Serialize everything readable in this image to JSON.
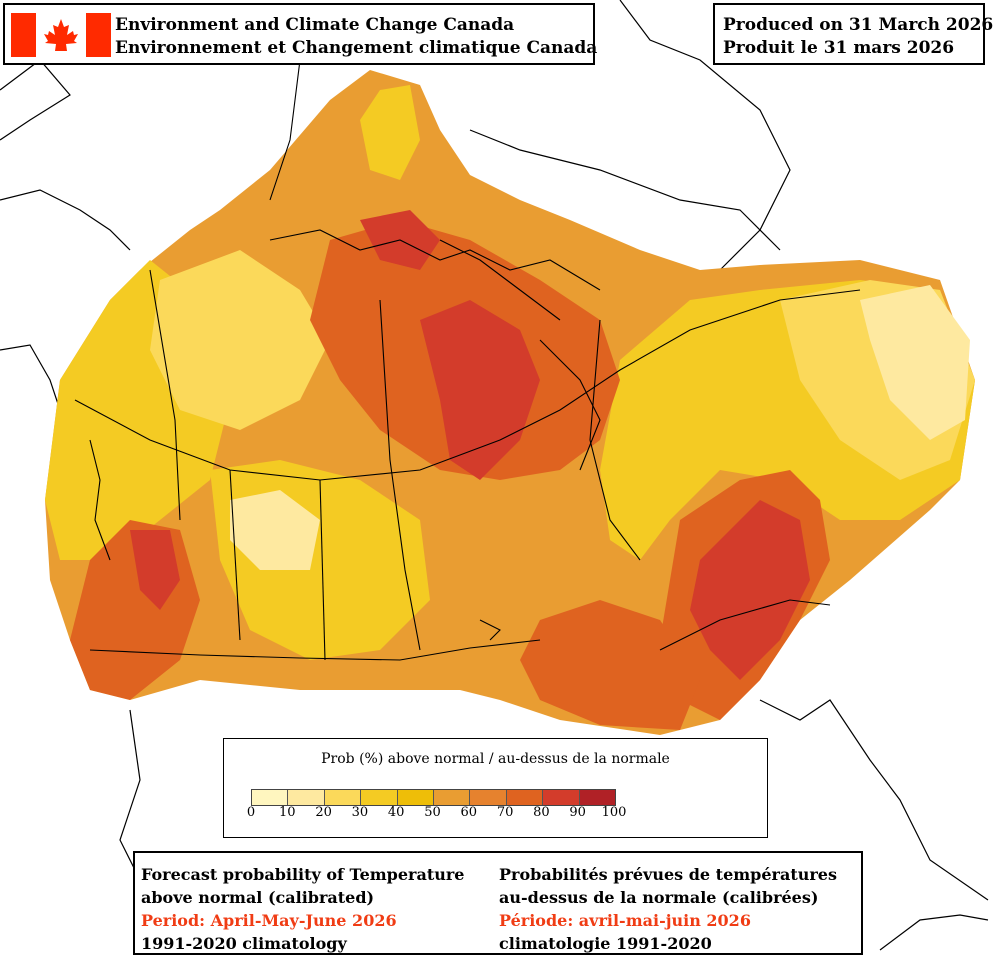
{
  "header": {
    "agency_en": "Environment and Climate Change Canada",
    "agency_fr": "Environnement et Changement climatique Canada",
    "produced_en": "Produced on 31 March 2026",
    "produced_fr": "Produit le 31 mars 2026"
  },
  "legend": {
    "title": "Prob (%) above normal / au-dessus de la normale",
    "ticks": [
      "0",
      "10",
      "20",
      "30",
      "40",
      "50",
      "60",
      "70",
      "80",
      "90",
      "100"
    ],
    "colors": [
      "#fff6bf",
      "#fee9a0",
      "#fbd95a",
      "#f4cb23",
      "#eebe08",
      "#e99d32",
      "#e6822e",
      "#df6320",
      "#d33c2b",
      "#b02126"
    ]
  },
  "footer": {
    "en_line1": "Forecast probability of Temperature",
    "en_line2": "above normal (calibrated)",
    "en_period": "Period: April-May-June 2026",
    "en_clim": "1991-2020 climatology",
    "fr_line1": "Probabilités prévues de températures",
    "fr_line2": "au-dessus de la normale (calibrées)",
    "fr_period": "Période: avril-mai-juin 2026",
    "fr_clim": "climatologie 1991-2020"
  },
  "colors": {
    "flag_red": "#ff2a00",
    "period_red": "#f03c14"
  }
}
